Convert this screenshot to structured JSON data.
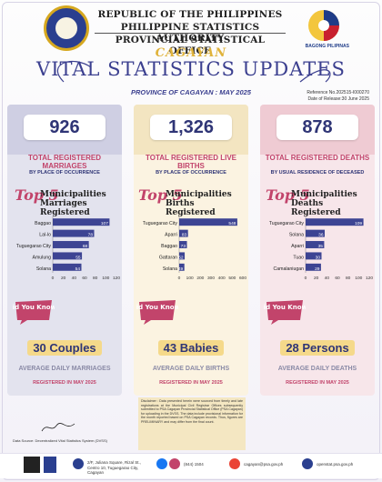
{
  "header": {
    "line1": "REPUBLIC OF THE PHILIPPINES",
    "line2": "PHILIPPINE STATISTICS AUTHORITY",
    "line3": "PROVINCIAL STATISTICAL OFFICE",
    "province": "CAGAYAN",
    "bp_label": "BAGONG PILIPINAS"
  },
  "title": "VITAL STATISTICS UPDATES",
  "subtitle": "PROVINCE OF CAGAYAN : MAY 2025",
  "reference": "Reference No.202515-I000270",
  "release_date": "Date of Release:30 June 2025",
  "columns": [
    {
      "total": "926",
      "total_label": "TOTAL REGISTERED MARRIAGES",
      "by_label": "BY PLACE OF OCCURRENCE",
      "top5_label": "Top 5",
      "muni_label": "Municipalities Marriages Registered",
      "avg": "30 Couples",
      "avg_label": "AVERAGE DAILY MARRIAGES",
      "avg_sub": "REGISTERED IN MAY 2025"
    },
    {
      "total": "1,326",
      "total_label": "TOTAL REGISTERED LIVE BIRTHS",
      "by_label": "BY PLACE OF OCCURRENCE",
      "top5_label": "Top 5",
      "muni_label": "Municipalities Births Registered",
      "avg": "43 Babies",
      "avg_label": "AVERAGE DAILY BIRTHS",
      "avg_sub": "REGISTERED IN MAY 2025"
    },
    {
      "total": "878",
      "total_label": "TOTAL REGISTERED DEATHS",
      "by_label": "BY USUAL RESIDENCE OF DECEASED",
      "top5_label": "Top 5",
      "muni_label": "Municipalities Deaths Registered",
      "avg": "28 Persons",
      "avg_label": "AVERAGE DAILY DEATHS",
      "avg_sub": "REGISTERED IN MAY 2025"
    }
  ],
  "dyk_text": "Did You Know?",
  "chart_data": [
    {
      "type": "bar",
      "orientation": "horizontal",
      "categories": [
        "Baggao",
        "Lal-lo",
        "Tuguegarao City",
        "Amulung",
        "Solana"
      ],
      "values": [
        107,
        78,
        68,
        55,
        54
      ],
      "xlim": [
        0,
        120
      ],
      "xticks": [
        0,
        20,
        40,
        60,
        80,
        100,
        120
      ],
      "color": "#3d4493"
    },
    {
      "type": "bar",
      "orientation": "horizontal",
      "categories": [
        "Tuguegarao City",
        "Aparri",
        "Baggao",
        "Gattaran",
        "Solana"
      ],
      "values": [
        548,
        83,
        73,
        52,
        49
      ],
      "xlim": [
        0,
        600
      ],
      "xticks": [
        0,
        100,
        200,
        300,
        400,
        500,
        600
      ],
      "color": "#3d4493"
    },
    {
      "type": "bar",
      "orientation": "horizontal",
      "categories": [
        "Tuguegarao City",
        "Solana",
        "Aparri",
        "Tuao",
        "Camalaniugan"
      ],
      "values": [
        109,
        36,
        35,
        30,
        29
      ],
      "xlim": [
        0,
        120
      ],
      "xticks": [
        0,
        20,
        40,
        60,
        80,
        100,
        120
      ],
      "color": "#3d4493"
    }
  ],
  "disclaimer": "Disclaimer : Data presented herein were sourced from timely and late registrations at the Municipal Civil Registrar Offices subsequently submitted to PSA Cagayan Provincial Statistical Office (PSA Cagayan) for uploading in the DVSS. The data include provisional information for the month reported based on PSA Cagayan records. Thus, figures are PRELIMINARY and may differ from the final count.",
  "data_source": "Data Source: Decentralized Vital Statistics System (DVSS)",
  "footer": {
    "address": "2/F, Juliana Square, Rizal St., Centro 10, Tuguegarao City, Cagayan",
    "phone": "(844) 1504",
    "email": "cagayan@psa.gov.ph",
    "website": "openstat.psa.gov.ph"
  }
}
